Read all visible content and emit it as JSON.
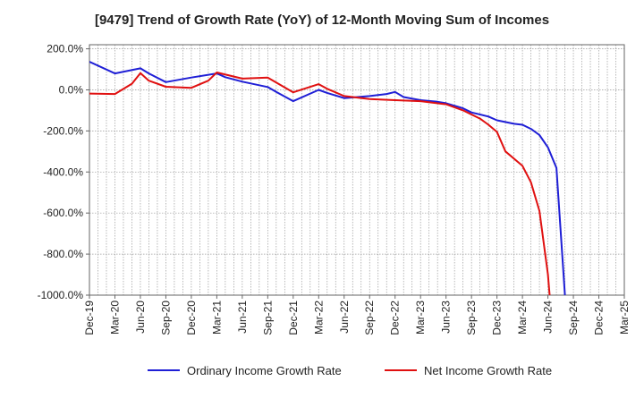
{
  "chart_data": {
    "type": "line",
    "title": "[9479]  Trend of Growth Rate (YoY) of 12-Month Moving Sum of Incomes",
    "ylim": [
      -1000,
      220
    ],
    "yticks": [
      200,
      0,
      -200,
      -400,
      -600,
      -800,
      -1000
    ],
    "ytick_labels": [
      "200.0%",
      "0.0%",
      "-200.0%",
      "-400.0%",
      "-600.0%",
      "-800.0%",
      "-1000.0%"
    ],
    "xtick_labels": [
      "Dec-19",
      "Mar-20",
      "Jun-20",
      "Sep-20",
      "Dec-20",
      "Mar-21",
      "Jun-21",
      "Sep-21",
      "Dec-21",
      "Mar-22",
      "Jun-22",
      "Sep-22",
      "Dec-22",
      "Mar-23",
      "Jun-23",
      "Sep-23",
      "Dec-23",
      "Mar-24",
      "Jun-24",
      "Sep-24",
      "Dec-24",
      "Mar-25"
    ],
    "grid": true,
    "legend_position": "bottom",
    "series": [
      {
        "name": "Ordinary Income Growth Rate",
        "color": "#1f1fd6",
        "points": [
          [
            "2019-12",
            137
          ],
          [
            "2020-03",
            80
          ],
          [
            "2020-06",
            105
          ],
          [
            "2020-07",
            80
          ],
          [
            "2020-09",
            38
          ],
          [
            "2020-12",
            60
          ],
          [
            "2021-03",
            80
          ],
          [
            "2021-04",
            62
          ],
          [
            "2021-06",
            40
          ],
          [
            "2021-09",
            14
          ],
          [
            "2021-10",
            -10
          ],
          [
            "2021-12",
            -55
          ],
          [
            "2022-03",
            0
          ],
          [
            "2022-04",
            -15
          ],
          [
            "2022-06",
            -40
          ],
          [
            "2022-09",
            -30
          ],
          [
            "2022-11",
            -20
          ],
          [
            "2022-12",
            -10
          ],
          [
            "2023-01",
            -35
          ],
          [
            "2023-03",
            -50
          ],
          [
            "2023-05",
            -58
          ],
          [
            "2023-06",
            -65
          ],
          [
            "2023-08",
            -90
          ],
          [
            "2023-09",
            -110
          ],
          [
            "2023-11",
            -130
          ],
          [
            "2023-12",
            -148
          ],
          [
            "2024-02",
            -165
          ],
          [
            "2024-03",
            -170
          ],
          [
            "2024-04",
            -190
          ],
          [
            "2024-05",
            -220
          ],
          [
            "2024-06",
            -280
          ],
          [
            "2024-07",
            -380
          ],
          [
            "2024-08",
            -1000
          ]
        ]
      },
      {
        "name": "Net Income Growth Rate",
        "color": "#e01010",
        "points": [
          [
            "2019-12",
            -18
          ],
          [
            "2020-03",
            -20
          ],
          [
            "2020-05",
            30
          ],
          [
            "2020-06",
            82
          ],
          [
            "2020-07",
            45
          ],
          [
            "2020-09",
            15
          ],
          [
            "2020-12",
            10
          ],
          [
            "2021-02",
            45
          ],
          [
            "2021-03",
            85
          ],
          [
            "2021-06",
            55
          ],
          [
            "2021-09",
            60
          ],
          [
            "2021-12",
            -12
          ],
          [
            "2022-03",
            28
          ],
          [
            "2022-04",
            5
          ],
          [
            "2022-06",
            -30
          ],
          [
            "2022-09",
            -45
          ],
          [
            "2022-12",
            -50
          ],
          [
            "2023-03",
            -55
          ],
          [
            "2023-06",
            -70
          ],
          [
            "2023-08",
            -100
          ],
          [
            "2023-10",
            -140
          ],
          [
            "2023-11",
            -170
          ],
          [
            "2023-12",
            -205
          ],
          [
            "2024-01",
            -300
          ],
          [
            "2024-03",
            -370
          ],
          [
            "2024-04",
            -450
          ],
          [
            "2024-05",
            -590
          ],
          [
            "2024-06",
            -900
          ],
          [
            "2024-06.2",
            -1000
          ]
        ]
      }
    ]
  }
}
